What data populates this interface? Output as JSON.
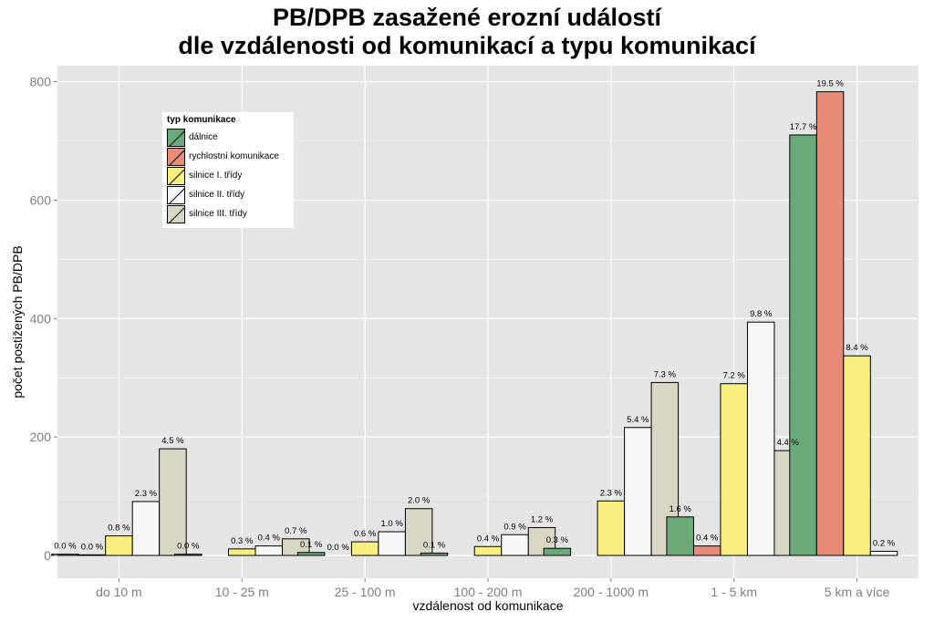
{
  "chart_data": {
    "type": "bar",
    "title_line1": "PB/DPB zasažené erozní událostí",
    "title_line2": "dle vzdálenosti od komunikací a typu komunikací",
    "xlabel": "vzdálenost od komunikace",
    "ylabel": "počet postižených PB/DPB",
    "ylim": [
      -30,
      820
    ],
    "yticks": [
      0,
      200,
      400,
      600,
      800
    ],
    "categories": [
      "do 10 m",
      "10 - 25 m",
      "25 - 100 m",
      "100 - 200 m",
      "200 - 1000 m",
      "1 - 5 km",
      "5 km a více"
    ],
    "legend_title": "typ komunikace",
    "legend_position": "top-left",
    "grid": true,
    "series": [
      {
        "name": "dálnice",
        "color": "#6aaa78",
        "values": [
          2,
          2,
          5,
          4,
          12,
          65,
          710
        ],
        "labels": [
          "0.0 %",
          "0.0 %",
          "0.1 %",
          "0.1 %",
          "0.3 %",
          "1.6 %",
          "17.7 %"
        ]
      },
      {
        "name": "rychlostní komunikace",
        "color": "#e88c78",
        "values": [
          1,
          0,
          0,
          0,
          0,
          16,
          783
        ],
        "labels": [
          "0.0 %",
          "",
          "0.0 %",
          "",
          "",
          "0.4 %",
          "19.5 %"
        ]
      },
      {
        "name": "silnice I. třídy",
        "color": "#f8ef80",
        "values": [
          33,
          11,
          23,
          15,
          92,
          290,
          337
        ],
        "labels": [
          "0.8 %",
          "0.3 %",
          "0.6 %",
          "0.4 %",
          "2.3 %",
          "7.2 %",
          "8.4 %"
        ]
      },
      {
        "name": "silnice II. třídy",
        "color": "#f7f7f7",
        "values": [
          91,
          16,
          40,
          35,
          216,
          394,
          7
        ],
        "labels": [
          "2.3 %",
          "0.4 %",
          "1.0 %",
          "0.9 %",
          "5.4 %",
          "9.8 %",
          "0.2 %"
        ]
      },
      {
        "name": "silnice III. třídy",
        "color": "#d9d6c4",
        "values": [
          180,
          28,
          79,
          47,
          292,
          177,
          0
        ],
        "labels": [
          "4.5 %",
          "0.7 %",
          "2.0 %",
          "1.2 %",
          "7.3 %",
          "4.4 %",
          ""
        ]
      }
    ]
  }
}
